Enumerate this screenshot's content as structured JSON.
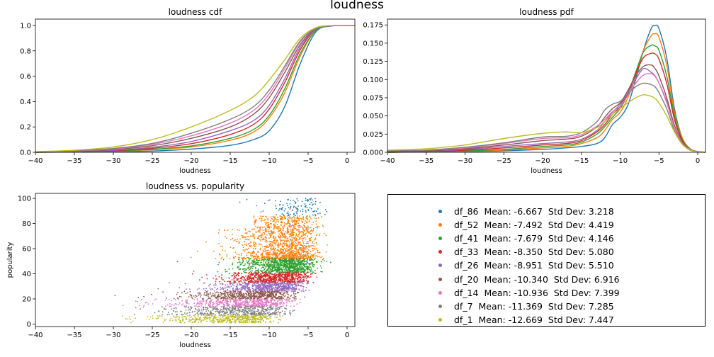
{
  "figure_title": "loudness",
  "chart_data": [
    {
      "type": "line",
      "title": "loudness cdf",
      "xlabel": "loudness",
      "ylabel": "",
      "xlim": [
        -40,
        1
      ],
      "ylim": [
        0,
        1.05
      ],
      "xticks": [
        -40,
        -35,
        -30,
        -25,
        -20,
        -15,
        -10,
        -5,
        0
      ],
      "yticks": [
        0.0,
        0.2,
        0.4,
        0.6,
        0.8,
        1.0
      ],
      "ytick_labels": [
        "0.0",
        "0.2",
        "0.4",
        "0.6",
        "0.8",
        "1.0"
      ],
      "grid": false,
      "x": [
        -40,
        -35,
        -30,
        -25,
        -20,
        -15,
        -12,
        -10,
        -8,
        -6,
        -4,
        -2,
        0,
        1
      ],
      "series": [
        {
          "color": "#1f77b4",
          "values": [
            0.0,
            0.002,
            0.004,
            0.01,
            0.025,
            0.055,
            0.1,
            0.17,
            0.36,
            0.7,
            0.95,
            0.995,
            1.0,
            1.0
          ]
        },
        {
          "color": "#ff7f0e",
          "values": [
            0.0,
            0.003,
            0.008,
            0.02,
            0.042,
            0.095,
            0.16,
            0.27,
            0.47,
            0.76,
            0.96,
            0.997,
            1.0,
            1.0
          ]
        },
        {
          "color": "#2ca02c",
          "values": [
            0.0,
            0.004,
            0.01,
            0.024,
            0.05,
            0.11,
            0.18,
            0.29,
            0.5,
            0.78,
            0.96,
            0.997,
            1.0,
            1.0
          ]
        },
        {
          "color": "#d62728",
          "values": [
            0.001,
            0.005,
            0.013,
            0.032,
            0.068,
            0.14,
            0.22,
            0.34,
            0.55,
            0.81,
            0.97,
            0.998,
            1.0,
            1.0
          ]
        },
        {
          "color": "#9467bd",
          "values": [
            0.001,
            0.007,
            0.016,
            0.04,
            0.085,
            0.17,
            0.25,
            0.37,
            0.58,
            0.83,
            0.97,
            0.998,
            1.0,
            1.0
          ]
        },
        {
          "color": "#8c564b",
          "values": [
            0.002,
            0.009,
            0.022,
            0.052,
            0.11,
            0.2,
            0.3,
            0.43,
            0.63,
            0.85,
            0.975,
            0.998,
            1.0,
            1.0
          ]
        },
        {
          "color": "#e377c2",
          "values": [
            0.003,
            0.011,
            0.027,
            0.062,
            0.13,
            0.23,
            0.33,
            0.46,
            0.66,
            0.87,
            0.978,
            0.998,
            1.0,
            1.0
          ]
        },
        {
          "color": "#7f7f7f",
          "values": [
            0.004,
            0.013,
            0.03,
            0.07,
            0.15,
            0.26,
            0.36,
            0.49,
            0.68,
            0.88,
            0.98,
            0.998,
            1.0,
            1.0
          ]
        },
        {
          "color": "#bcbd22",
          "values": [
            0.005,
            0.016,
            0.042,
            0.1,
            0.2,
            0.33,
            0.44,
            0.57,
            0.73,
            0.9,
            0.983,
            0.999,
            1.0,
            1.0
          ]
        }
      ]
    },
    {
      "type": "line",
      "title": "loudness pdf",
      "xlabel": "loudness",
      "ylabel": "",
      "xlim": [
        -40,
        1
      ],
      "ylim": [
        0,
        0.183
      ],
      "xticks": [
        -40,
        -35,
        -30,
        -25,
        -20,
        -15,
        -10,
        -5,
        0
      ],
      "yticks": [
        0.0,
        0.025,
        0.05,
        0.075,
        0.1,
        0.125,
        0.15,
        0.175
      ],
      "ytick_labels": [
        "0.000",
        "0.025",
        "0.050",
        "0.075",
        "0.100",
        "0.125",
        "0.150",
        "0.175"
      ],
      "grid": false,
      "x": [
        -40,
        -35,
        -30,
        -25,
        -20,
        -17,
        -15,
        -13,
        -12,
        -11,
        -10,
        -9,
        -8,
        -7,
        -6,
        -5.5,
        -5,
        -4,
        -3,
        -2,
        -1,
        0,
        1
      ],
      "series": [
        {
          "color": "#1f77b4",
          "values": [
            0.0,
            0.0005,
            0.001,
            0.002,
            0.004,
            0.006,
            0.008,
            0.012,
            0.02,
            0.038,
            0.048,
            0.065,
            0.1,
            0.14,
            0.17,
            0.174,
            0.17,
            0.13,
            0.06,
            0.02,
            0.005,
            0.001,
            0.0
          ]
        },
        {
          "color": "#ff7f0e",
          "values": [
            0.0,
            0.0006,
            0.0015,
            0.003,
            0.006,
            0.008,
            0.012,
            0.02,
            0.03,
            0.045,
            0.055,
            0.075,
            0.105,
            0.14,
            0.16,
            0.163,
            0.158,
            0.12,
            0.055,
            0.02,
            0.005,
            0.001,
            0.0
          ]
        },
        {
          "color": "#2ca02c",
          "values": [
            0.0,
            0.0008,
            0.002,
            0.004,
            0.008,
            0.01,
            0.014,
            0.025,
            0.035,
            0.048,
            0.06,
            0.08,
            0.11,
            0.138,
            0.147,
            0.146,
            0.14,
            0.105,
            0.05,
            0.018,
            0.005,
            0.001,
            0.0
          ]
        },
        {
          "color": "#d62728",
          "values": [
            0.001,
            0.001,
            0.003,
            0.006,
            0.01,
            0.012,
            0.016,
            0.028,
            0.038,
            0.052,
            0.063,
            0.082,
            0.108,
            0.13,
            0.136,
            0.135,
            0.128,
            0.095,
            0.045,
            0.016,
            0.004,
            0.001,
            0.0
          ]
        },
        {
          "color": "#9467bd",
          "values": [
            0.001,
            0.0015,
            0.004,
            0.008,
            0.012,
            0.014,
            0.018,
            0.03,
            0.042,
            0.055,
            0.066,
            0.082,
            0.1,
            0.115,
            0.11,
            0.105,
            0.095,
            0.07,
            0.035,
            0.013,
            0.003,
            0.001,
            0.0
          ]
        },
        {
          "color": "#8c564b",
          "values": [
            0.001,
            0.002,
            0.005,
            0.01,
            0.016,
            0.018,
            0.022,
            0.035,
            0.048,
            0.06,
            0.068,
            0.085,
            0.105,
            0.118,
            0.12,
            0.115,
            0.105,
            0.075,
            0.037,
            0.014,
            0.004,
            0.001,
            0.0
          ]
        },
        {
          "color": "#e377c2",
          "values": [
            0.002,
            0.003,
            0.006,
            0.012,
            0.019,
            0.02,
            0.024,
            0.036,
            0.045,
            0.056,
            0.063,
            0.078,
            0.095,
            0.106,
            0.108,
            0.104,
            0.095,
            0.068,
            0.034,
            0.013,
            0.004,
            0.001,
            0.0
          ]
        },
        {
          "color": "#7f7f7f",
          "values": [
            0.002,
            0.003,
            0.007,
            0.013,
            0.021,
            0.022,
            0.027,
            0.042,
            0.058,
            0.066,
            0.07,
            0.08,
            0.09,
            0.095,
            0.093,
            0.09,
            0.082,
            0.06,
            0.03,
            0.012,
            0.003,
            0.001,
            0.0
          ]
        },
        {
          "color": "#bcbd22",
          "values": [
            0.003,
            0.005,
            0.01,
            0.019,
            0.026,
            0.028,
            0.027,
            0.034,
            0.042,
            0.052,
            0.06,
            0.068,
            0.075,
            0.079,
            0.077,
            0.074,
            0.068,
            0.05,
            0.028,
            0.011,
            0.003,
            0.001,
            0.0
          ]
        }
      ]
    },
    {
      "type": "scatter",
      "title": "loudness vs. popularity",
      "xlabel": "loudness",
      "ylabel": "popularity",
      "xlim": [
        -40,
        1
      ],
      "ylim": [
        -2,
        104
      ],
      "xticks": [
        -40,
        -35,
        -30,
        -25,
        -20,
        -15,
        -10,
        -5,
        0
      ],
      "yticks": [
        0,
        20,
        40,
        60,
        80,
        100
      ],
      "grid": false,
      "series": [
        {
          "name": "df_86",
          "color": "#1f77b4",
          "y_range": [
            86,
            100
          ],
          "mean": -6.667,
          "std": 3.218
        },
        {
          "name": "df_52",
          "color": "#ff7f0e",
          "y_range": [
            52,
            86
          ],
          "mean": -7.492,
          "std": 4.419
        },
        {
          "name": "df_41",
          "color": "#2ca02c",
          "y_range": [
            41,
            52
          ],
          "mean": -7.679,
          "std": 4.146
        },
        {
          "name": "df_33",
          "color": "#d62728",
          "y_range": [
            33,
            41
          ],
          "mean": -8.35,
          "std": 5.08
        },
        {
          "name": "df_26",
          "color": "#9467bd",
          "y_range": [
            26,
            33
          ],
          "mean": -8.951,
          "std": 5.51
        },
        {
          "name": "df_20",
          "color": "#8c564b",
          "y_range": [
            20,
            26
          ],
          "mean": -10.34,
          "std": 6.916
        },
        {
          "name": "df_14",
          "color": "#e377c2",
          "y_range": [
            14,
            20
          ],
          "mean": -10.936,
          "std": 7.399
        },
        {
          "name": "df_7",
          "color": "#7f7f7f",
          "y_range": [
            7,
            14
          ],
          "mean": -11.369,
          "std": 7.285
        },
        {
          "name": "df_1",
          "color": "#bcbd22",
          "y_range": [
            1,
            7
          ],
          "mean": -12.669,
          "std": 7.447
        }
      ]
    }
  ],
  "legend": {
    "entries": [
      {
        "label": "df_86  Mean: -6.667  Std Dev: 3.218",
        "color": "#1f77b4"
      },
      {
        "label": "df_52  Mean: -7.492  Std Dev: 4.419",
        "color": "#ff7f0e"
      },
      {
        "label": "df_41  Mean: -7.679  Std Dev: 4.146",
        "color": "#2ca02c"
      },
      {
        "label": "df_33  Mean: -8.350  Std Dev: 5.080",
        "color": "#d62728"
      },
      {
        "label": "df_26  Mean: -8.951  Std Dev: 5.510",
        "color": "#9467bd"
      },
      {
        "label": "df_20  Mean: -10.340  Std Dev: 6.916",
        "color": "#8c564b"
      },
      {
        "label": "df_14  Mean: -10.936  Std Dev: 7.399",
        "color": "#e377c2"
      },
      {
        "label": "df_7  Mean: -11.369  Std Dev: 7.285",
        "color": "#7f7f7f"
      },
      {
        "label": "df_1  Mean: -12.669  Std Dev: 7.447",
        "color": "#bcbd22"
      }
    ]
  }
}
